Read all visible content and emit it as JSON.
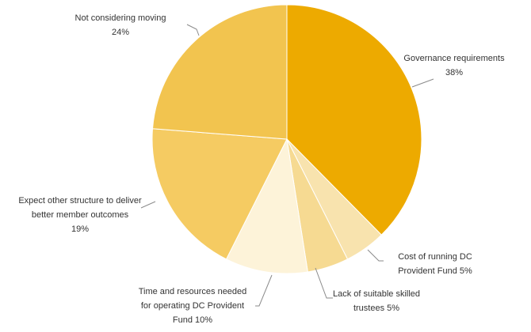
{
  "chart_data": {
    "type": "pie",
    "title": "",
    "slices": [
      {
        "label_lines": [
          "Governance requirements"
        ],
        "pct_text": "38%",
        "value": 38,
        "color": "#EDAA00"
      },
      {
        "label_lines": [
          "Cost of running DC",
          "Provident Fund 5%"
        ],
        "pct_text": "",
        "value": 5,
        "color": "#F8E3AE"
      },
      {
        "label_lines": [
          "Lack of suitable skilled",
          "trustees 5%"
        ],
        "pct_text": "",
        "value": 5,
        "color": "#F6DA92"
      },
      {
        "label_lines": [
          "Time and resources needed",
          "for operating DC Provident",
          "Fund 10%"
        ],
        "pct_text": "",
        "value": 10,
        "color": "#FDF3D9"
      },
      {
        "label_lines": [
          "Expect other structure to deliver",
          "better member outcomes"
        ],
        "pct_text": "19%",
        "value": 19,
        "color": "#F5CB62"
      },
      {
        "label_lines": [
          "Not considering moving"
        ],
        "pct_text": "24%",
        "value": 24,
        "color": "#F2C44F"
      }
    ]
  }
}
